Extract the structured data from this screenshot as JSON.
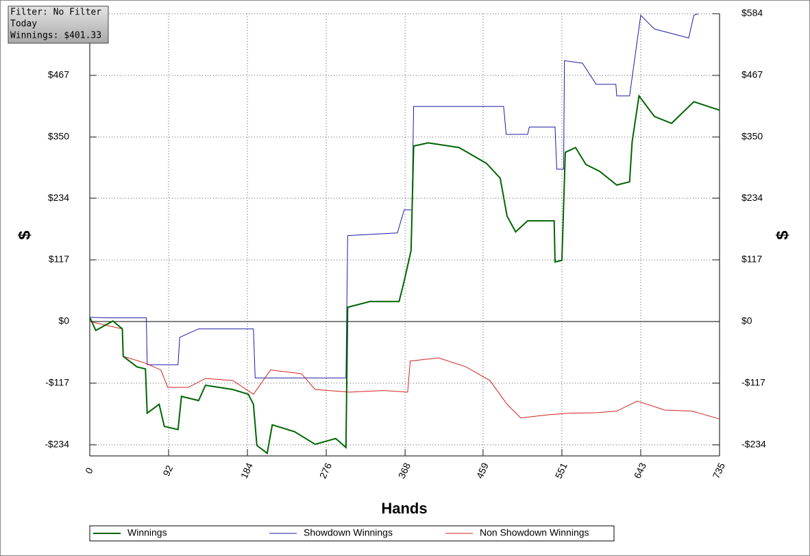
{
  "chart_data": {
    "type": "line",
    "annotations": [
      "Filter: No Filter",
      "Today",
      "Winnings: $401.33"
    ],
    "xlabel": "Hands",
    "ylabel": "$",
    "y2label": "$",
    "xlim": [
      0,
      735
    ],
    "ylim": [
      -255,
      584
    ],
    "xticks": [
      0,
      92,
      184,
      276,
      368,
      459,
      551,
      643,
      735
    ],
    "yticks": [
      {
        "value": -234,
        "label": "-$234"
      },
      {
        "value": -117,
        "label": "-$117"
      },
      {
        "value": 0,
        "label": "$0"
      },
      {
        "value": 117,
        "label": "$117"
      },
      {
        "value": 234,
        "label": "$234"
      },
      {
        "value": 350,
        "label": "$350"
      },
      {
        "value": 467,
        "label": "$467"
      },
      {
        "value": 584,
        "label": "$584"
      }
    ],
    "grid": true,
    "series": [
      {
        "name": "Winnings",
        "color": "#006400",
        "x": [
          0,
          7,
          27,
          38,
          39,
          55,
          65,
          67,
          81,
          87,
          103,
          107,
          127,
          135,
          167,
          185,
          191,
          195,
          207,
          213,
          239,
          263,
          287,
          299,
          301,
          327,
          361,
          367,
          375,
          378,
          395,
          431,
          463,
          479,
          487,
          497,
          511,
          542,
          543,
          551,
          555,
          567,
          579,
          595,
          615,
          630,
          633,
          641,
          659,
          679,
          705,
          735
        ],
        "values": [
          8,
          -17,
          1,
          -14,
          -66,
          -86,
          -90,
          -174,
          -157,
          -199,
          -205,
          -142,
          -150,
          -121,
          -129,
          -138,
          -157,
          -235,
          -250,
          -196,
          -209,
          -233,
          -222,
          -239,
          27,
          38,
          38,
          77,
          135,
          333,
          339,
          330,
          300,
          272,
          200,
          170,
          191,
          191,
          113,
          116,
          321,
          330,
          298,
          285,
          259,
          265,
          341,
          428,
          389,
          376,
          417,
          401
        ]
      },
      {
        "name": "Showdown Winnings",
        "color": "#1a1aa6",
        "x": [
          0,
          23,
          66,
          67,
          103,
          105,
          127,
          191,
          193,
          299,
          301,
          359,
          367,
          376,
          378,
          483,
          486,
          511,
          513,
          543,
          545,
          553,
          554,
          575,
          591,
          614,
          615,
          630,
          643,
          659,
          699,
          705,
          710
        ],
        "values": [
          8,
          7,
          7,
          -82,
          -82,
          -30,
          -14,
          -14,
          -107,
          -107,
          163,
          168,
          212,
          212,
          408,
          408,
          355,
          355,
          369,
          369,
          289,
          289,
          495,
          490,
          450,
          450,
          428,
          428,
          581,
          555,
          538,
          581,
          584
        ]
      },
      {
        "name": "Non Showdown Winnings",
        "color": "#d22020",
        "x": [
          0,
          38,
          39,
          65,
          83,
          91,
          115,
          135,
          167,
          191,
          211,
          247,
          263,
          303,
          343,
          371,
          374,
          407,
          439,
          467,
          487,
          503,
          535,
          559,
          591,
          615,
          639,
          671,
          703,
          735
        ],
        "values": [
          0,
          -14,
          -66,
          -79,
          -92,
          -125,
          -125,
          -108,
          -112,
          -138,
          -92,
          -99,
          -129,
          -134,
          -131,
          -134,
          -75,
          -69,
          -86,
          -112,
          -157,
          -183,
          -177,
          -174,
          -173,
          -170,
          -151,
          -168,
          -170,
          -185
        ]
      }
    ]
  }
}
